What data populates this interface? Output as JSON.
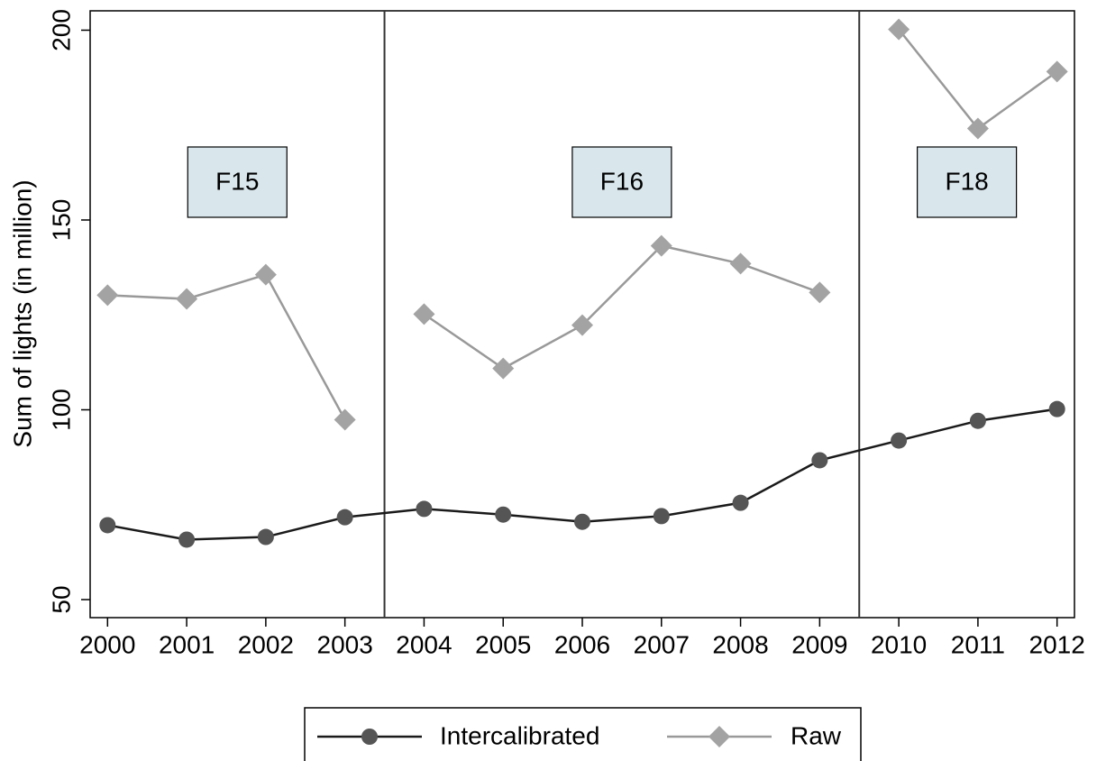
{
  "chart_data": {
    "type": "line",
    "y_label": "Sum of lights (in million)",
    "x": [
      2000,
      2001,
      2002,
      2003,
      2004,
      2005,
      2006,
      2007,
      2008,
      2009,
      2010,
      2011,
      2012
    ],
    "series": [
      {
        "name": "Intercalibrated",
        "color": "#1a1a1a",
        "marker": "circle",
        "marker_color": "#555555",
        "values": [
          69.6,
          65.8,
          66.5,
          71.7,
          73.9,
          72.4,
          70.5,
          72.0,
          75.5,
          86.7,
          91.9,
          97.1,
          100.2
        ]
      },
      {
        "name": "Raw",
        "color": "#999999",
        "marker": "diamond",
        "marker_color": "#a3a3a3",
        "break_at_vlines": true,
        "values": [
          130.2,
          129.2,
          135.6,
          97.4,
          125.2,
          110.9,
          122.3,
          143.2,
          138.5,
          130.9,
          200.2,
          174.1,
          189.1
        ]
      }
    ],
    "vlines": [
      2003.5,
      2009.5
    ],
    "annotations": [
      "F15",
      "F16",
      "F18"
    ],
    "xlim": [
      1999.78,
      2012.22
    ],
    "xticks": [
      2000,
      2001,
      2002,
      2003,
      2004,
      2005,
      2006,
      2007,
      2008,
      2009,
      2010,
      2011,
      2012
    ],
    "ylim": [
      45.25,
      205.1
    ],
    "yticks": [
      50,
      100,
      150,
      200
    ],
    "legend": "bottom"
  }
}
